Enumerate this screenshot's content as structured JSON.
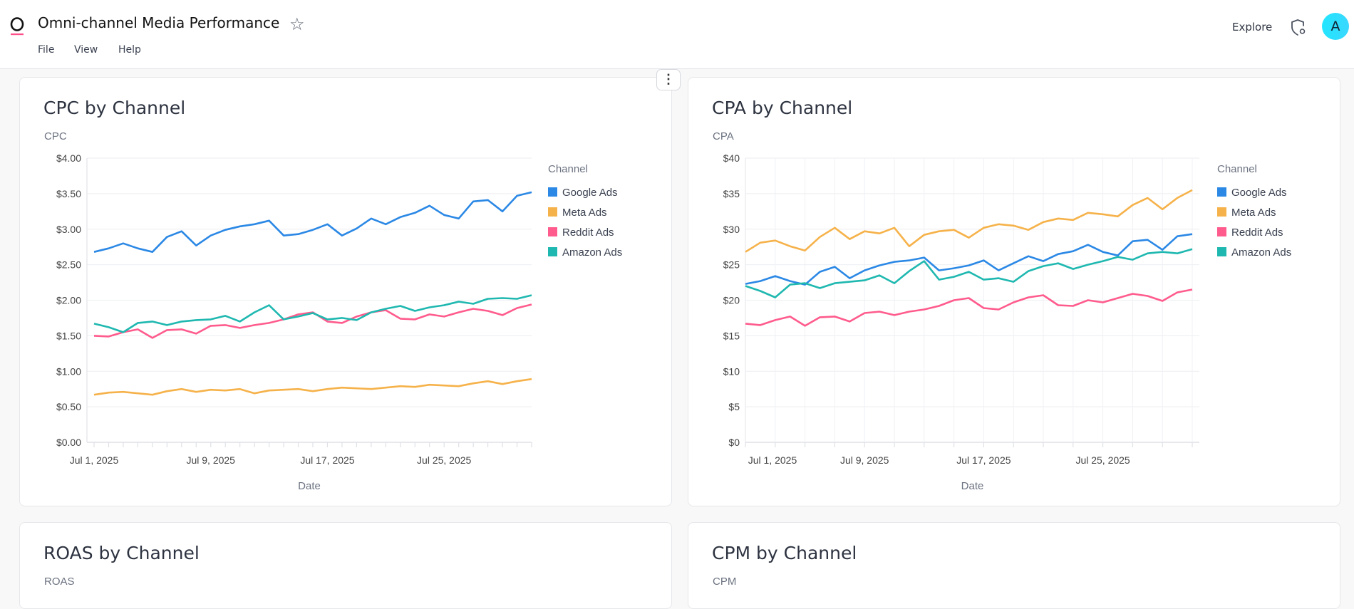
{
  "header": {
    "title": "Omni-channel Media Performance",
    "menu": [
      "File",
      "View",
      "Help"
    ],
    "explore_label": "Explore",
    "avatar_letter": "A",
    "icons": {
      "logo": "omni-logo",
      "favorite": "star-icon",
      "admin": "shield-gear-icon",
      "more": "more-vertical-icon"
    }
  },
  "colors": {
    "Google Ads": "#2b88e5",
    "Meta Ads": "#f6b24a",
    "Reddit Ads": "#ff5b8d",
    "Amazon Ads": "#1fb8b0",
    "avatar": "#2ee4ff",
    "logo_accent": "#ff4f8b"
  },
  "cards": [
    {
      "title": "CPC by Channel",
      "y_title": "CPC"
    },
    {
      "title": "CPA by Channel",
      "y_title": "CPA"
    },
    {
      "title": "ROAS by Channel",
      "y_title": "ROAS"
    },
    {
      "title": "CPM by Channel",
      "y_title": "CPM"
    }
  ],
  "chart_data": [
    {
      "type": "line",
      "title": "CPC by Channel",
      "ylabel": "CPC",
      "xlabel": "Date",
      "legend_title": "Channel",
      "legend_placement": "right",
      "ylim": [
        0,
        4
      ],
      "yticks": [
        "$0.00",
        "$0.50",
        "$1.00",
        "$1.50",
        "$2.00",
        "$2.50",
        "$3.00",
        "$3.50",
        "$4.00"
      ],
      "x_start": "Jul 1, 2025",
      "x_end": "Jul 31, 2025",
      "xtick_labels": [
        "Jul 1, 2025",
        "Jul 9, 2025",
        "Jul 17, 2025",
        "Jul 25, 2025"
      ],
      "grid": "horizontal",
      "series": [
        {
          "name": "Google Ads",
          "values": [
            2.68,
            2.73,
            2.8,
            2.73,
            2.68,
            2.89,
            2.97,
            2.77,
            2.91,
            2.99,
            3.04,
            3.07,
            3.12,
            2.91,
            2.93,
            2.99,
            3.07,
            2.91,
            3.01,
            3.15,
            3.07,
            3.17,
            3.23,
            3.33,
            3.2,
            3.15,
            3.39,
            3.41,
            3.25,
            3.47,
            3.52
          ]
        },
        {
          "name": "Meta Ads",
          "values": [
            0.67,
            0.7,
            0.71,
            0.69,
            0.67,
            0.72,
            0.75,
            0.71,
            0.74,
            0.73,
            0.75,
            0.69,
            0.73,
            0.74,
            0.75,
            0.72,
            0.75,
            0.77,
            0.76,
            0.75,
            0.77,
            0.79,
            0.78,
            0.81,
            0.8,
            0.79,
            0.83,
            0.86,
            0.82,
            0.86,
            0.89
          ]
        },
        {
          "name": "Reddit Ads",
          "values": [
            1.5,
            1.49,
            1.55,
            1.59,
            1.47,
            1.58,
            1.59,
            1.53,
            1.64,
            1.65,
            1.61,
            1.65,
            1.68,
            1.73,
            1.8,
            1.83,
            1.7,
            1.68,
            1.77,
            1.83,
            1.86,
            1.74,
            1.73,
            1.8,
            1.77,
            1.83,
            1.88,
            1.85,
            1.79,
            1.89,
            1.94
          ]
        },
        {
          "name": "Amazon Ads",
          "values": [
            1.67,
            1.62,
            1.55,
            1.68,
            1.7,
            1.65,
            1.7,
            1.72,
            1.73,
            1.78,
            1.7,
            1.83,
            1.93,
            1.73,
            1.77,
            1.82,
            1.73,
            1.75,
            1.72,
            1.83,
            1.88,
            1.92,
            1.85,
            1.9,
            1.93,
            1.98,
            1.95,
            2.02,
            2.03,
            2.02,
            2.07
          ]
        }
      ]
    },
    {
      "type": "line",
      "title": "CPA by Channel",
      "ylabel": "CPA",
      "xlabel": "Date",
      "legend_title": "Channel",
      "legend_placement": "right",
      "ylim": [
        0,
        40
      ],
      "yticks": [
        "$0",
        "$5",
        "$10",
        "$15",
        "$20",
        "$25",
        "$30",
        "$35",
        "$40"
      ],
      "x_start": "Jul 1, 2025",
      "x_end": "Jul 31, 2025",
      "xtick_labels": [
        "Jul 1, 2025",
        "Jul 9, 2025",
        "Jul 17, 2025",
        "Jul 25, 2025"
      ],
      "grid": "both",
      "series": [
        {
          "name": "Google Ads",
          "values": [
            22.3,
            22.7,
            23.4,
            22.7,
            22.2,
            24.0,
            24.7,
            23.1,
            24.2,
            24.9,
            25.4,
            25.6,
            26.0,
            24.2,
            24.5,
            24.9,
            25.6,
            24.2,
            25.2,
            26.2,
            25.5,
            26.5,
            26.9,
            27.8,
            26.8,
            26.3,
            28.3,
            28.5,
            27.1,
            29.0,
            29.3
          ]
        },
        {
          "name": "Meta Ads",
          "values": [
            26.8,
            28.1,
            28.4,
            27.6,
            27.0,
            28.9,
            30.2,
            28.6,
            29.7,
            29.4,
            30.2,
            27.6,
            29.2,
            29.7,
            29.9,
            28.8,
            30.2,
            30.7,
            30.5,
            29.9,
            31.0,
            31.5,
            31.3,
            32.3,
            32.1,
            31.8,
            33.4,
            34.4,
            32.8,
            34.4,
            35.5
          ]
        },
        {
          "name": "Reddit Ads",
          "values": [
            16.7,
            16.5,
            17.2,
            17.7,
            16.4,
            17.6,
            17.7,
            17.0,
            18.2,
            18.4,
            17.9,
            18.4,
            18.7,
            19.2,
            20.0,
            20.3,
            18.9,
            18.7,
            19.7,
            20.4,
            20.7,
            19.3,
            19.2,
            20.0,
            19.7,
            20.3,
            20.9,
            20.6,
            19.9,
            21.1,
            21.5
          ]
        },
        {
          "name": "Amazon Ads",
          "values": [
            22.0,
            21.3,
            20.4,
            22.2,
            22.4,
            21.7,
            22.4,
            22.6,
            22.8,
            23.5,
            22.4,
            24.1,
            25.5,
            22.9,
            23.3,
            24.0,
            22.9,
            23.1,
            22.6,
            24.1,
            24.8,
            25.2,
            24.4,
            25.0,
            25.5,
            26.1,
            25.7,
            26.6,
            26.8,
            26.6,
            27.2
          ]
        }
      ]
    }
  ]
}
